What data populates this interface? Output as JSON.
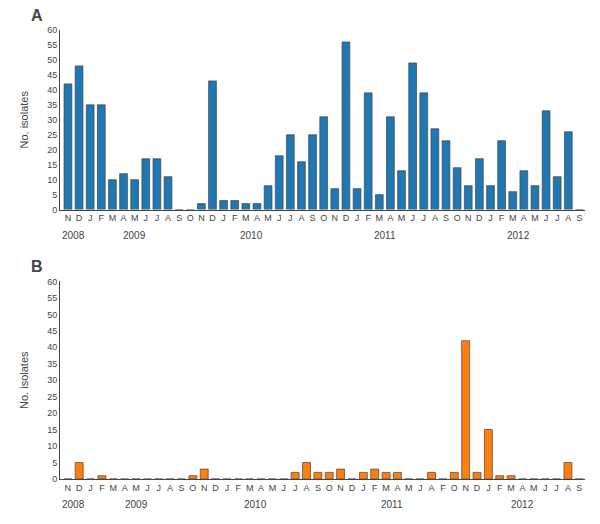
{
  "chart_data": [
    {
      "type": "bar",
      "title": "A",
      "ylabel": "No. isolates",
      "categories": [
        "N",
        "D",
        "J",
        "F",
        "M",
        "A",
        "M",
        "J",
        "J",
        "A",
        "S",
        "O",
        "N",
        "D",
        "J",
        "F",
        "M",
        "A",
        "M",
        "J",
        "J",
        "A",
        "S",
        "O",
        "N",
        "D",
        "J",
        "F",
        "M",
        "A",
        "M",
        "J",
        "J",
        "A",
        "S",
        "O",
        "N",
        "D",
        "J",
        "F",
        "M",
        "A",
        "M",
        "J",
        "J",
        "A",
        "S"
      ],
      "values": [
        42,
        48,
        35,
        35,
        10,
        12,
        10,
        17,
        17,
        11,
        0,
        0,
        2,
        43,
        3,
        3,
        2,
        2,
        8,
        18,
        25,
        16,
        25,
        31,
        7,
        56,
        7,
        39,
        5,
        31,
        13,
        49,
        39,
        27,
        23,
        14,
        8,
        17,
        8,
        23,
        6,
        13,
        8,
        33,
        11,
        26,
        0
      ],
      "ylim": [
        0,
        60
      ],
      "yticks": [
        0,
        5,
        10,
        15,
        20,
        25,
        30,
        35,
        40,
        45,
        50,
        55,
        60
      ],
      "grid": false,
      "annotations": [
        {
          "text": "2008",
          "x": 0.5
        },
        {
          "text": "2009",
          "x": 6
        },
        {
          "text": "2010",
          "x": 16.5
        },
        {
          "text": "2011",
          "x": 28.5
        },
        {
          "text": "2012",
          "x": 40.5
        }
      ]
    },
    {
      "type": "bar",
      "title": "B",
      "ylabel": "No. isolates",
      "categories": [
        "N",
        "D",
        "J",
        "F",
        "M",
        "A",
        "M",
        "J",
        "J",
        "A",
        "S",
        "O",
        "N",
        "D",
        "J",
        "F",
        "M",
        "A",
        "M",
        "J",
        "J",
        "A",
        "S",
        "O",
        "N",
        "D",
        "J",
        "F",
        "M",
        "A",
        "M",
        "J",
        "A",
        "F",
        "O",
        "N",
        "D",
        "J",
        "F",
        "M",
        "A",
        "M",
        "J",
        "J",
        "A",
        "S"
      ],
      "values": [
        0,
        5,
        0,
        1,
        0,
        0,
        0,
        0,
        0,
        0,
        0,
        1,
        3,
        0,
        0,
        0,
        0,
        0,
        0,
        0,
        2,
        5,
        2,
        2,
        3,
        0,
        2,
        3,
        2,
        2,
        0,
        0,
        2,
        0,
        2,
        42,
        2,
        15,
        1,
        1,
        0,
        0,
        0,
        0,
        5,
        0
      ],
      "ylim": [
        0,
        60
      ],
      "yticks": [
        0,
        5,
        10,
        15,
        20,
        25,
        30,
        35,
        40,
        45,
        50,
        55,
        60
      ],
      "grid": false,
      "annotations": [
        {
          "text": "2008",
          "x": 0.5
        },
        {
          "text": "2009",
          "x": 6
        },
        {
          "text": "2010",
          "x": 16.5
        },
        {
          "text": "2011",
          "x": 28.5
        },
        {
          "text": "2012",
          "x": 40
        }
      ]
    }
  ]
}
